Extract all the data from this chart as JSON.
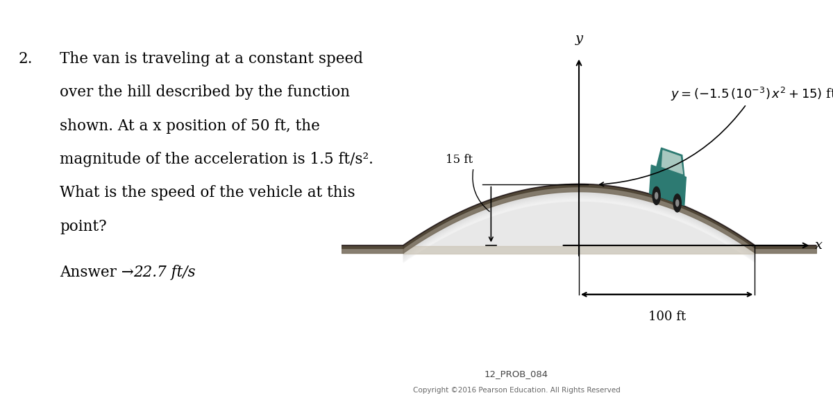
{
  "background_color": "#ffffff",
  "text_color": "#000000",
  "problem_number": "2.",
  "problem_text_lines": [
    "The van is traveling at a constant speed",
    "over the hill described by the function",
    "shown. At a x position of 50 ft, the",
    "magnitude of the acceleration is 1.5 ft/s².",
    "What is the speed of the vehicle at this",
    "point?"
  ],
  "figure_label": "12_PROB_084",
  "copyright_text": "Copyright ©2016 Pearson Education. All Rights Reserved",
  "label_15ft": "15 ft",
  "label_100ft": "100 ft",
  "label_x": "x",
  "label_y": "y",
  "coeff_a": -0.0015,
  "coeff_b": 15,
  "text_fontsize": 15.5
}
